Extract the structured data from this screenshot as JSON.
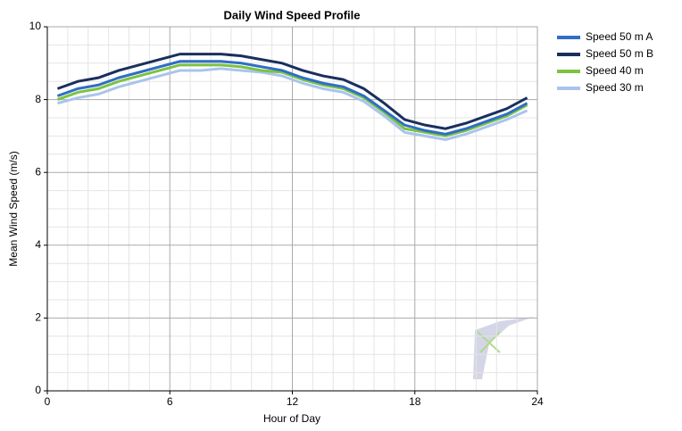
{
  "chart_data": {
    "type": "line",
    "title": "Daily Wind Speed Profile",
    "x_label": "Hour of Day",
    "y_label": "Mean Wind Speed (m/s)",
    "x": [
      0.5,
      1.5,
      2.5,
      3.5,
      4.5,
      5.5,
      6.5,
      7.5,
      8.5,
      9.5,
      10.5,
      11.5,
      12.5,
      13.5,
      14.5,
      15.5,
      16.5,
      17.5,
      18.5,
      19.5,
      20.5,
      21.5,
      22.5,
      23.5
    ],
    "series": [
      {
        "name": "Speed 50 m A",
        "color": "#2f6fc4",
        "values": [
          8.1,
          8.3,
          8.4,
          8.6,
          8.75,
          8.9,
          9.05,
          9.05,
          9.05,
          9.0,
          8.9,
          8.8,
          8.6,
          8.45,
          8.35,
          8.1,
          7.7,
          7.3,
          7.15,
          7.05,
          7.2,
          7.4,
          7.6,
          7.9
        ]
      },
      {
        "name": "Speed 50 m B",
        "color": "#1a2f5e",
        "values": [
          8.3,
          8.5,
          8.6,
          8.8,
          8.95,
          9.1,
          9.25,
          9.25,
          9.25,
          9.2,
          9.1,
          9.0,
          8.8,
          8.65,
          8.55,
          8.3,
          7.9,
          7.45,
          7.3,
          7.2,
          7.35,
          7.55,
          7.75,
          8.05
        ]
      },
      {
        "name": "Speed 40 m",
        "color": "#7dc242",
        "values": [
          8.0,
          8.2,
          8.3,
          8.5,
          8.65,
          8.8,
          8.95,
          8.95,
          8.95,
          8.9,
          8.8,
          8.75,
          8.55,
          8.4,
          8.3,
          8.05,
          7.65,
          7.2,
          7.1,
          7.0,
          7.15,
          7.35,
          7.55,
          7.85
        ]
      },
      {
        "name": "Speed 30 m",
        "color": "#a9c4ec",
        "values": [
          7.9,
          8.05,
          8.15,
          8.35,
          8.5,
          8.65,
          8.8,
          8.8,
          8.85,
          8.8,
          8.75,
          8.65,
          8.45,
          8.3,
          8.2,
          7.95,
          7.55,
          7.1,
          7.0,
          6.9,
          7.05,
          7.25,
          7.45,
          7.7
        ]
      }
    ],
    "xlim": [
      0,
      24
    ],
    "xticks": [
      0,
      6,
      12,
      18,
      24
    ],
    "ylim": [
      0,
      10
    ],
    "yticks": [
      0,
      2,
      4,
      6,
      8,
      10
    ],
    "grid": true,
    "minor_grid": true,
    "legend": "right"
  }
}
